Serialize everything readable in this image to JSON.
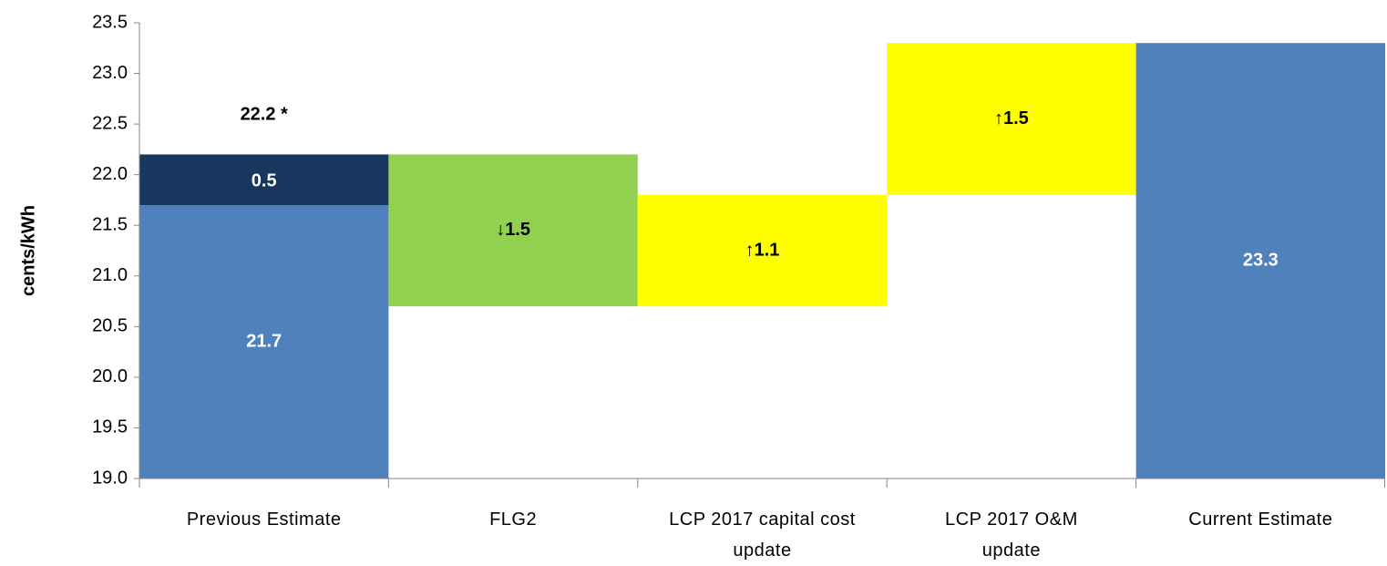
{
  "chart_data": {
    "type": "waterfall",
    "y_label": "cents/kWh",
    "categories": [
      "Previous Estimate",
      "FLG2",
      "LCP 2017 capital cost update",
      "LCP 2017 O&M update",
      "Current Estimate"
    ],
    "measures": [
      "absolute",
      "relative",
      "relative",
      "relative",
      "total"
    ],
    "values": [
      21.7,
      -1.5,
      1.1,
      1.5,
      23.3
    ],
    "value_labels": [
      "21.7",
      "↓1.5",
      "↑1.1",
      "↑1.5",
      "23.3"
    ],
    "colors": [
      "#4f81bd",
      "#92d050",
      "#ffff00",
      "#ffff00",
      "#4f81bd"
    ],
    "adjustment": {
      "value": 0.5,
      "color": "#17375e",
      "total": 22.2,
      "total_label": "22.2 *"
    },
    "ylim": [
      19,
      23.5
    ],
    "yticks": [
      {
        "value": 19,
        "label": "19.0"
      },
      19.5,
      {
        "value": 20,
        "label": "20.0"
      },
      20.5,
      {
        "value": 21,
        "label": "21.0"
      },
      21.5,
      {
        "value": 22,
        "label": "22.0"
      },
      22.5,
      {
        "value": 23,
        "label": "23.0"
      },
      23.5
    ]
  }
}
